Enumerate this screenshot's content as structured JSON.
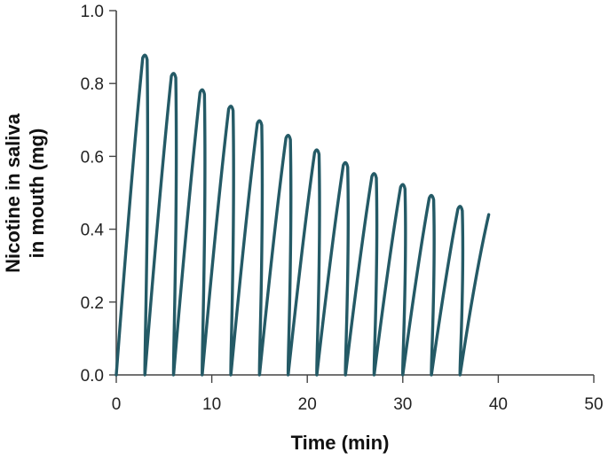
{
  "chart_data": {
    "type": "line",
    "title": "",
    "xlabel": "Time (min)",
    "ylabel": [
      "Nicotine in saliva",
      "in mouth (mg)"
    ],
    "xlim": [
      0,
      50
    ],
    "ylim": [
      0,
      1.0
    ],
    "x_ticks": [
      0,
      10,
      20,
      30,
      40,
      50
    ],
    "y_ticks": [
      0.0,
      0.2,
      0.4,
      0.6,
      0.8,
      1.0
    ],
    "x_tick_labels": [
      "0",
      "10",
      "20",
      "30",
      "40",
      "50"
    ],
    "y_tick_labels": [
      "0.0",
      "0.2",
      "0.4",
      "0.6",
      "0.8",
      "1.0"
    ],
    "grid": false,
    "legend": "none",
    "series": [
      {
        "color": "#245a66",
        "peaks": [
          {
            "x": 3,
            "y": 0.88
          },
          {
            "x": 6,
            "y": 0.83
          },
          {
            "x": 9,
            "y": 0.785
          },
          {
            "x": 12,
            "y": 0.74
          },
          {
            "x": 15,
            "y": 0.7
          },
          {
            "x": 18,
            "y": 0.66
          },
          {
            "x": 21,
            "y": 0.62
          },
          {
            "x": 24,
            "y": 0.585
          },
          {
            "x": 27,
            "y": 0.555
          },
          {
            "x": 30,
            "y": 0.525
          },
          {
            "x": 33,
            "y": 0.495
          },
          {
            "x": 36,
            "y": 0.465
          }
        ],
        "troughs": [
          0,
          3,
          6,
          9,
          12,
          15,
          18,
          21,
          24,
          27,
          30,
          33,
          36
        ],
        "end": {
          "x": 39,
          "y": 0.44
        }
      }
    ]
  }
}
